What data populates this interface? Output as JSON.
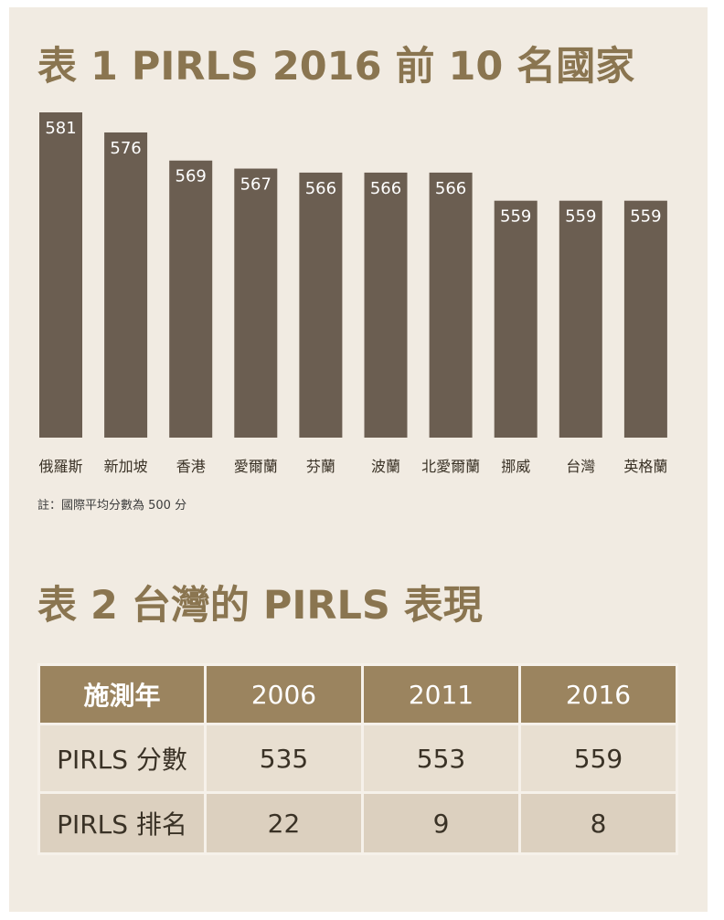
{
  "title1": "表 1  PIRLS 2016 前 10 名國家",
  "title2": "表 2  台灣的 PIRLS 表現",
  "note": "註：國際平均分數為 500 分",
  "colors": {
    "bar": "#6b5e51",
    "title": "#8a7550",
    "header": "#9b845f",
    "background": "#f1ebe2"
  },
  "chart_data": {
    "type": "bar",
    "title": "表 1  PIRLS 2016 前 10 名國家",
    "categories": [
      "俄羅斯",
      "新加坡",
      "香港",
      "愛爾蘭",
      "芬蘭",
      "波蘭",
      "北愛爾蘭",
      "挪威",
      "台灣",
      "英格蘭"
    ],
    "values": [
      581,
      576,
      569,
      567,
      566,
      566,
      566,
      559,
      559,
      559
    ],
    "xlabel": "",
    "ylabel": "",
    "ylim": [
      500,
      581
    ],
    "grid": false,
    "data_labels": true
  },
  "table": {
    "header": [
      "施測年",
      "2006",
      "2011",
      "2016"
    ],
    "rows": [
      {
        "label": "PIRLS 分數",
        "values": [
          "535",
          "553",
          "559"
        ]
      },
      {
        "label": "PIRLS 排名",
        "values": [
          "22",
          "9",
          "8"
        ]
      }
    ]
  }
}
